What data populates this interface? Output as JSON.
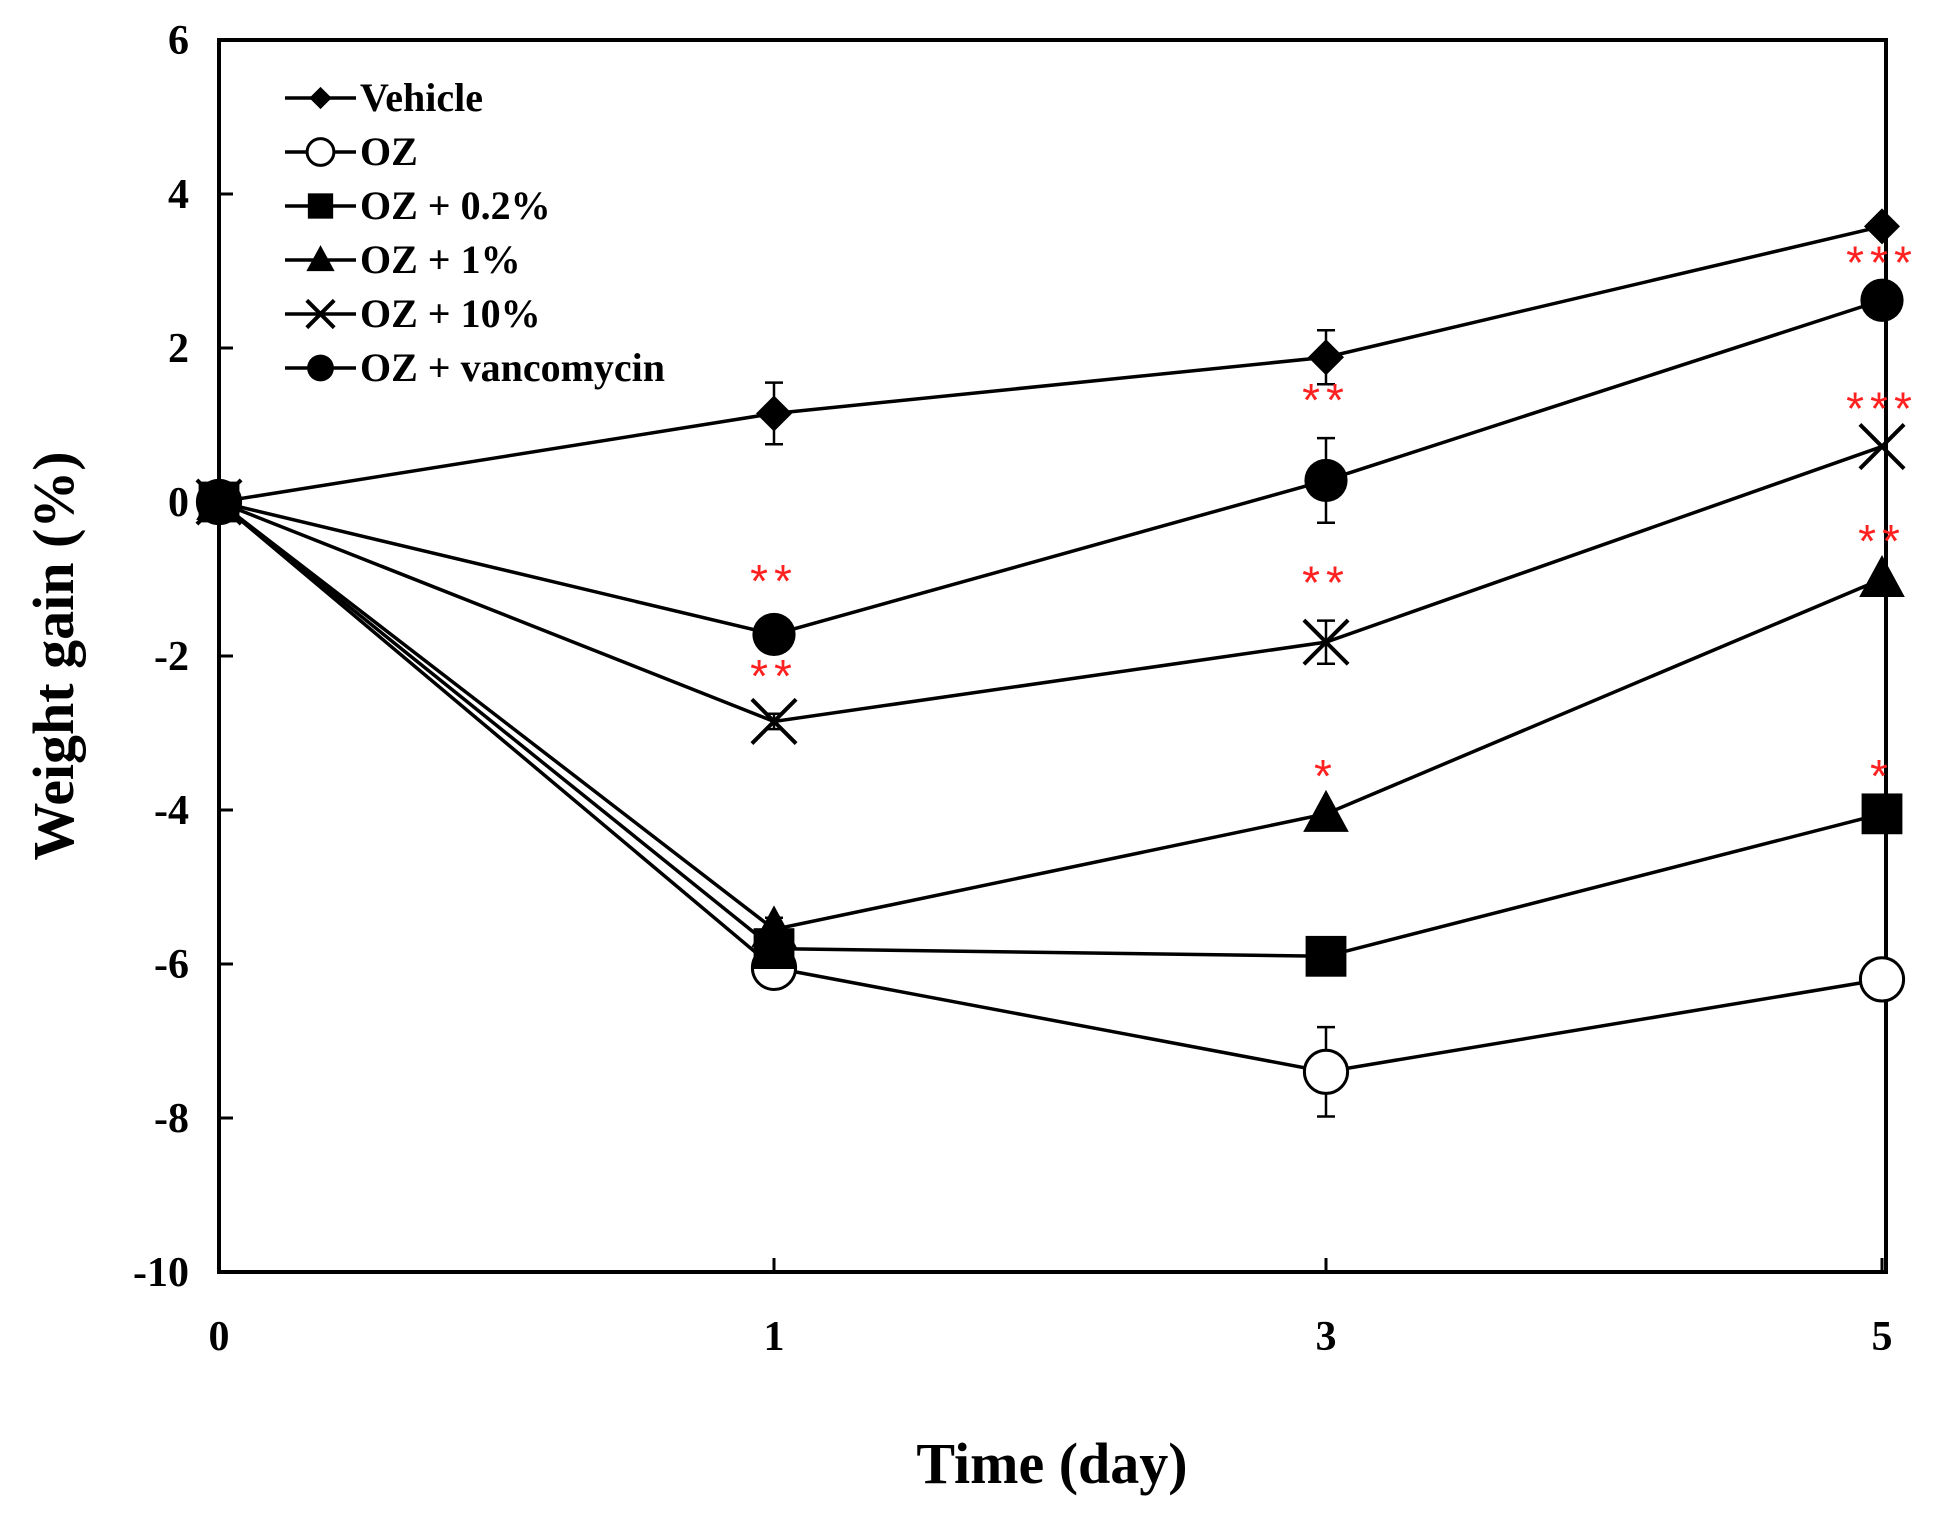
{
  "chart_data": {
    "type": "line",
    "xlabel": "Time (day)",
    "ylabel": "Weight gain (%)",
    "x": [
      0,
      1,
      3,
      5
    ],
    "x_tick_labels": [
      "0",
      "1",
      "3",
      "5"
    ],
    "y_ticks": [
      -10,
      -8,
      -6,
      -4,
      -2,
      0,
      2,
      4,
      6
    ],
    "y_tick_labels": [
      "-10",
      "-8",
      "-6",
      "-4",
      "-2",
      "0",
      "2",
      "4",
      "6"
    ],
    "ylim": [
      -10,
      6
    ],
    "grid": false,
    "legend_placement": "top-left",
    "series": [
      {
        "name": "Vehicle",
        "marker": "diamond-filled",
        "values": [
          0,
          1.15,
          1.88,
          3.58
        ],
        "errors": [
          0,
          0.4,
          0.35,
          0
        ],
        "significance": [
          "",
          "",
          "",
          ""
        ]
      },
      {
        "name": "OZ",
        "marker": "circle-open",
        "values": [
          0,
          -6.05,
          -7.4,
          -6.2
        ],
        "errors": [
          0,
          0.1,
          0.58,
          0
        ],
        "significance": [
          "",
          "",
          "",
          ""
        ]
      },
      {
        "name": "OZ + 0.2%",
        "marker": "square-filled",
        "values": [
          0,
          -5.8,
          -5.9,
          -4.05
        ],
        "errors": [
          0,
          0.1,
          0,
          0
        ],
        "significance": [
          "",
          "",
          "",
          "*"
        ]
      },
      {
        "name": "OZ + 1%",
        "marker": "triangle-filled",
        "values": [
          0,
          -5.55,
          -4.05,
          -1.0
        ],
        "errors": [
          0,
          0.15,
          0,
          0
        ],
        "significance": [
          "",
          "",
          "*",
          "**"
        ]
      },
      {
        "name": "OZ + 10%",
        "marker": "x",
        "values": [
          0,
          -2.85,
          -1.82,
          0.72
        ],
        "errors": [
          0,
          0.1,
          0.28,
          0
        ],
        "significance": [
          "",
          "**",
          "**",
          "***"
        ]
      },
      {
        "name": "OZ + vancomycin",
        "marker": "circle-filled",
        "values": [
          0,
          -1.72,
          0.28,
          2.62
        ],
        "errors": [
          0,
          0.2,
          0.55,
          0
        ],
        "significance": [
          "",
          "**",
          "**",
          "***"
        ]
      }
    ]
  }
}
